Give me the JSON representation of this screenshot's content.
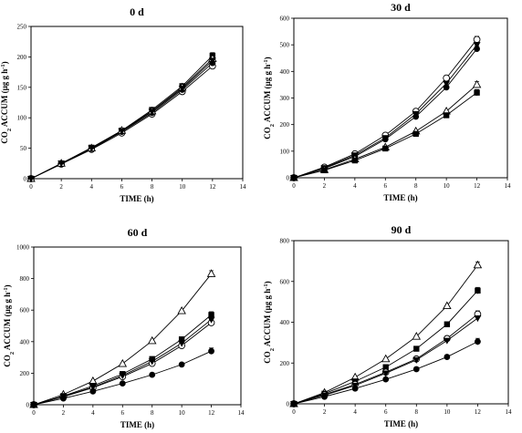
{
  "chart_data": [
    {
      "type": "line",
      "title": "0 d",
      "xlabel": "TIME (h)",
      "ylabel": "CO2 ACCUM (µg g h-1)",
      "xlim": [
        0,
        14
      ],
      "ylim": [
        0,
        250
      ],
      "xticks": [
        0,
        2,
        4,
        6,
        8,
        10,
        12,
        14
      ],
      "yticks": [
        0,
        50,
        100,
        150,
        200,
        250
      ],
      "x": [
        0,
        2,
        4,
        6,
        8,
        10,
        12
      ],
      "series": [
        {
          "marker": "open-circle",
          "values": [
            0,
            24,
            48,
            75,
            106,
            143,
            185
          ]
        },
        {
          "marker": "filled-circle",
          "values": [
            0,
            24,
            49,
            77,
            108,
            146,
            190
          ]
        },
        {
          "marker": "filled-square",
          "values": [
            0,
            25,
            51,
            79,
            113,
            152,
            202
          ]
        },
        {
          "marker": "open-triangle",
          "values": [
            0,
            25,
            50,
            79,
            111,
            150,
            197
          ]
        },
        {
          "marker": "filled-triangle-down",
          "values": [
            0,
            25,
            50,
            78,
            110,
            148,
            194
          ]
        }
      ]
    },
    {
      "type": "line",
      "title": "30 d",
      "xlabel": "TIME (h)",
      "ylabel": "CO2 ACCUM (µg g h-1)",
      "xlim": [
        0,
        14
      ],
      "ylim": [
        0,
        600
      ],
      "xticks": [
        0,
        2,
        4,
        6,
        8,
        10,
        12,
        14
      ],
      "yticks": [
        0,
        100,
        200,
        300,
        400,
        500,
        600
      ],
      "x": [
        0,
        2,
        4,
        6,
        8,
        10,
        12
      ],
      "series": [
        {
          "marker": "open-circle",
          "values": [
            0,
            40,
            90,
            160,
            250,
            375,
            520
          ]
        },
        {
          "marker": "filled-circle",
          "values": [
            0,
            35,
            80,
            145,
            230,
            340,
            485
          ]
        },
        {
          "marker": "filled-triangle-down",
          "values": [
            0,
            37,
            85,
            150,
            240,
            355,
            500
          ]
        },
        {
          "marker": "open-triangle",
          "values": [
            0,
            30,
            70,
            115,
            175,
            250,
            350
          ]
        },
        {
          "marker": "filled-square",
          "values": [
            0,
            28,
            65,
            110,
            165,
            235,
            320
          ]
        }
      ]
    },
    {
      "type": "line",
      "title": "60 d",
      "xlabel": "TIME (h)",
      "ylabel": "CO2 ACCUM (µg g h-1)",
      "xlim": [
        0,
        14
      ],
      "ylim": [
        0,
        1000
      ],
      "xticks": [
        0,
        2,
        4,
        6,
        8,
        10,
        12,
        14
      ],
      "yticks": [
        0,
        200,
        400,
        600,
        800,
        1000
      ],
      "x": [
        0,
        2,
        4,
        6,
        8,
        10,
        12
      ],
      "series": [
        {
          "marker": "open-triangle",
          "values": [
            0,
            65,
            150,
            260,
            405,
            595,
            830
          ]
        },
        {
          "marker": "filled-square",
          "values": [
            0,
            55,
            120,
            195,
            290,
            415,
            570
          ]
        },
        {
          "marker": "open-circle",
          "values": [
            0,
            50,
            108,
            178,
            262,
            375,
            520
          ]
        },
        {
          "marker": "filled-triangle-down",
          "values": [
            0,
            52,
            112,
            185,
            275,
            390,
            540
          ]
        },
        {
          "marker": "filled-circle",
          "values": [
            0,
            40,
            85,
            135,
            190,
            255,
            340
          ]
        }
      ]
    },
    {
      "type": "line",
      "title": "90 d",
      "xlabel": "TIME (h)",
      "ylabel": "CO2 ACCUM (µg g h-1)",
      "xlim": [
        0,
        14
      ],
      "ylim": [
        0,
        800
      ],
      "xticks": [
        0,
        2,
        4,
        6,
        8,
        10,
        12,
        14
      ],
      "yticks": [
        0,
        200,
        400,
        600,
        800
      ],
      "x": [
        0,
        2,
        4,
        6,
        8,
        10,
        12
      ],
      "series": [
        {
          "marker": "open-triangle",
          "values": [
            0,
            55,
            130,
            220,
            330,
            480,
            680
          ]
        },
        {
          "marker": "filled-square",
          "values": [
            0,
            50,
            110,
            180,
            270,
            390,
            555
          ]
        },
        {
          "marker": "open-circle",
          "values": [
            0,
            45,
            95,
            155,
            220,
            320,
            440
          ]
        },
        {
          "marker": "filled-triangle-down",
          "values": [
            0,
            42,
            90,
            150,
            215,
            310,
            420
          ]
        },
        {
          "marker": "filled-circle",
          "values": [
            0,
            35,
            75,
            120,
            170,
            230,
            305
          ]
        }
      ]
    }
  ]
}
